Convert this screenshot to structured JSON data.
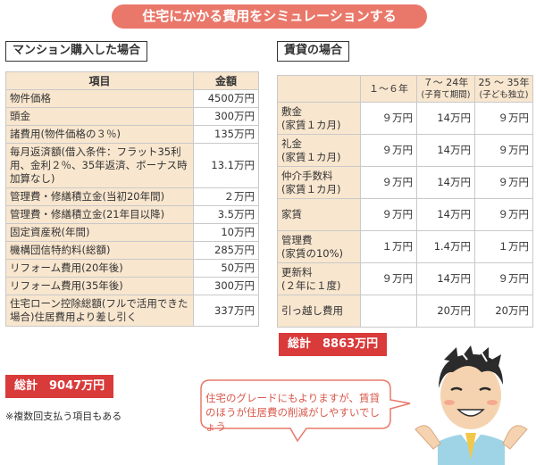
{
  "banner": "住宅にかかる費用をシミュレーションする",
  "left": {
    "title": "マンション購入した場合",
    "headers": [
      "項目",
      "金額"
    ],
    "rows": [
      {
        "item": "物件価格",
        "amount": "4500万円"
      },
      {
        "item": "頭金",
        "amount": "300万円"
      },
      {
        "item": "諸費用(物件価格の３％)",
        "amount": "135万円"
      },
      {
        "item": "毎月返済額(借入条件：フラット35利用、金利２％、35年返済、ボーナス時加算なし)",
        "amount": "13.1万円"
      },
      {
        "item": "管理費・修繕積立金(当初20年間)",
        "amount": "２万円"
      },
      {
        "item": "管理費・修繕積立金(21年目以降)",
        "amount": "3.5万円"
      },
      {
        "item": "固定資産税(年間)",
        "amount": "10万円"
      },
      {
        "item": "機構団信特約料(総額)",
        "amount": "285万円"
      },
      {
        "item": "リフォーム費用(20年後)",
        "amount": "50万円"
      },
      {
        "item": "リフォーム費用(35年後)",
        "amount": "300万円"
      },
      {
        "item": "住宅ローン控除総額(フルで活用できた場合)住居費用より差し引く",
        "amount": "337万円"
      }
    ],
    "total": "総計　9047万円",
    "footnote": "※複数回支払う項目もある"
  },
  "right": {
    "title": "賃貸の場合",
    "headers": [
      {
        "main": "",
        "sub": ""
      },
      {
        "main": "１〜６年",
        "sub": ""
      },
      {
        "main": "７〜 24年",
        "sub": "(子育て期間)"
      },
      {
        "main": "25 〜 35年",
        "sub": "(子ども独立)"
      }
    ],
    "rows": [
      {
        "item": "敷金\n(家賃１カ月)",
        "values": [
          "９万円",
          "14万円",
          "９万円"
        ]
      },
      {
        "item": "礼金\n(家賃１カ月)",
        "values": [
          "９万円",
          "14万円",
          "９万円"
        ]
      },
      {
        "item": "仲介手数料\n(家賃１カ月)",
        "values": [
          "９万円",
          "14万円",
          "９万円"
        ]
      },
      {
        "item": "家賃",
        "values": [
          "９万円",
          "14万円",
          "９万円"
        ]
      },
      {
        "item": "管理費\n(家賃の10%)",
        "values": [
          "１万円",
          "1.4万円",
          "１万円"
        ]
      },
      {
        "item": "更新料\n(２年に１度)",
        "values": [
          "９万円",
          "14万円",
          "９万円"
        ]
      },
      {
        "item": "引っ越し費用",
        "values": [
          "",
          "20万円",
          "20万円"
        ]
      }
    ],
    "total": "総計　8863万円"
  },
  "bubble": {
    "text": "住宅のグレードにもよりますが、賃貸のほうが住居費の削減がしやすいでしょう"
  },
  "colors": {
    "banner": "#e9786a",
    "header_fill": "#f8e6cf",
    "total": "#d93a3a",
    "bubble_text": "#d9574a"
  }
}
